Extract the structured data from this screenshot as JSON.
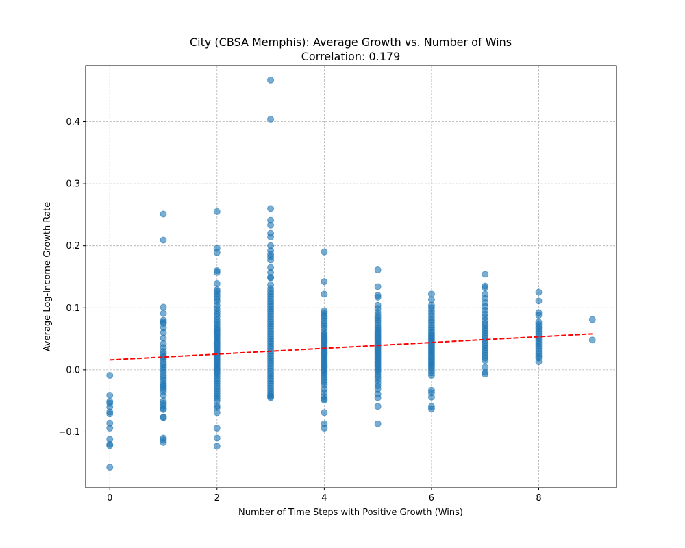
{
  "chart_data": {
    "type": "scatter",
    "title": "City (CBSA Memphis): Average Growth vs. Number of Wins",
    "subtitle": "Correlation: 0.179",
    "xlabel": "Number of Time Steps with Positive Growth (Wins)",
    "ylabel": "Average Log-Income Growth Rate",
    "xlim": [
      -0.45,
      9.45
    ],
    "ylim": [
      -0.19,
      0.49
    ],
    "xticks": [
      0,
      2,
      4,
      6,
      8
    ],
    "yticks": [
      -0.1,
      0.0,
      0.1,
      0.2,
      0.3,
      0.4
    ],
    "xtick_labels": [
      "0",
      "2",
      "4",
      "6",
      "8"
    ],
    "ytick_labels": [
      "−0.1",
      "0.0",
      "0.1",
      "0.2",
      "0.3",
      "0.4"
    ],
    "grid": true,
    "point_color": "#1f77b4",
    "trend_color": "#ff0000",
    "trendline": {
      "x": [
        0,
        9
      ],
      "y": [
        0.016,
        0.058
      ]
    },
    "series": [
      {
        "x": 0,
        "y": [
          -0.009,
          -0.041,
          -0.051,
          -0.054,
          -0.06,
          -0.068,
          -0.071,
          -0.086,
          -0.094,
          -0.112,
          -0.12,
          -0.122,
          -0.157
        ]
      },
      {
        "x": 1,
        "y": [
          0.251,
          0.209,
          0.101,
          0.091,
          0.08,
          0.077,
          0.075,
          0.068,
          0.06,
          0.051,
          0.042,
          0.036,
          0.03,
          0.026,
          0.022,
          0.02,
          0.017,
          0.012,
          0.008,
          0.004,
          0.0,
          -0.004,
          -0.009,
          -0.013,
          -0.017,
          -0.022,
          -0.025,
          -0.028,
          -0.031,
          -0.035,
          -0.041,
          -0.05,
          -0.054,
          -0.058,
          -0.062,
          -0.064,
          -0.076,
          -0.077,
          -0.11,
          -0.113,
          -0.117
        ]
      },
      {
        "x": 2,
        "y": [
          0.255,
          0.196,
          0.189,
          0.16,
          0.157,
          0.139,
          0.129,
          0.126,
          0.122,
          0.118,
          0.114,
          0.11,
          0.104,
          0.099,
          0.094,
          0.09,
          0.086,
          0.081,
          0.077,
          0.073,
          0.069,
          0.066,
          0.063,
          0.06,
          0.057,
          0.054,
          0.051,
          0.048,
          0.045,
          0.042,
          0.039,
          0.036,
          0.033,
          0.03,
          0.027,
          0.024,
          0.021,
          0.018,
          0.015,
          0.012,
          0.009,
          0.006,
          0.003,
          0.0,
          -0.003,
          -0.006,
          -0.01,
          -0.014,
          -0.018,
          -0.022,
          -0.026,
          -0.03,
          -0.034,
          -0.038,
          -0.042,
          -0.046,
          -0.05,
          -0.058,
          -0.061,
          -0.069,
          -0.094,
          -0.11,
          -0.123
        ]
      },
      {
        "x": 3,
        "y": [
          0.467,
          0.404,
          0.26,
          0.241,
          0.233,
          0.22,
          0.214,
          0.2,
          0.192,
          0.186,
          0.182,
          0.177,
          0.165,
          0.157,
          0.149,
          0.148,
          0.137,
          0.131,
          0.126,
          0.122,
          0.118,
          0.114,
          0.11,
          0.106,
          0.102,
          0.098,
          0.094,
          0.09,
          0.086,
          0.082,
          0.078,
          0.074,
          0.07,
          0.066,
          0.062,
          0.058,
          0.054,
          0.05,
          0.046,
          0.042,
          0.038,
          0.034,
          0.03,
          0.026,
          0.022,
          0.018,
          0.014,
          0.01,
          0.006,
          0.002,
          -0.002,
          -0.006,
          -0.01,
          -0.014,
          -0.018,
          -0.022,
          -0.026,
          -0.03,
          -0.034,
          -0.038,
          -0.041,
          -0.043,
          -0.045
        ]
      },
      {
        "x": 4,
        "y": [
          0.19,
          0.142,
          0.122,
          0.095,
          0.091,
          0.087,
          0.084,
          0.079,
          0.075,
          0.071,
          0.067,
          0.061,
          0.058,
          0.055,
          0.052,
          0.049,
          0.046,
          0.043,
          0.04,
          0.037,
          0.034,
          0.031,
          0.028,
          0.025,
          0.022,
          0.019,
          0.016,
          0.013,
          0.01,
          0.007,
          0.004,
          0.001,
          -0.002,
          -0.005,
          -0.008,
          -0.012,
          -0.016,
          -0.02,
          -0.024,
          -0.031,
          -0.037,
          -0.043,
          -0.047,
          -0.049,
          -0.069,
          -0.087,
          -0.094
        ]
      },
      {
        "x": 5,
        "y": [
          0.161,
          0.134,
          0.12,
          0.117,
          0.104,
          0.099,
          0.093,
          0.088,
          0.084,
          0.08,
          0.076,
          0.072,
          0.068,
          0.065,
          0.062,
          0.059,
          0.056,
          0.053,
          0.05,
          0.047,
          0.044,
          0.041,
          0.038,
          0.035,
          0.032,
          0.029,
          0.026,
          0.023,
          0.02,
          0.017,
          0.014,
          0.011,
          0.008,
          0.005,
          0.002,
          -0.001,
          -0.004,
          -0.008,
          -0.012,
          -0.016,
          -0.021,
          -0.026,
          -0.031,
          -0.039,
          -0.045,
          -0.059,
          -0.087
        ]
      },
      {
        "x": 6,
        "y": [
          0.122,
          0.113,
          0.104,
          0.1,
          0.095,
          0.09,
          0.085,
          0.08,
          0.076,
          0.072,
          0.068,
          0.064,
          0.06,
          0.057,
          0.054,
          0.051,
          0.048,
          0.045,
          0.042,
          0.039,
          0.036,
          0.033,
          0.03,
          0.027,
          0.024,
          0.021,
          0.018,
          0.015,
          0.012,
          0.009,
          0.006,
          0.003,
          -0.001,
          -0.005,
          -0.009,
          -0.033,
          -0.037,
          -0.044,
          -0.059,
          -0.063
        ]
      },
      {
        "x": 7,
        "y": [
          0.154,
          0.135,
          0.132,
          0.122,
          0.115,
          0.108,
          0.102,
          0.096,
          0.09,
          0.085,
          0.08,
          0.075,
          0.071,
          0.067,
          0.063,
          0.059,
          0.055,
          0.051,
          0.047,
          0.043,
          0.039,
          0.035,
          0.031,
          0.027,
          0.023,
          0.019,
          0.015,
          0.004,
          -0.004,
          -0.007
        ]
      },
      {
        "x": 8,
        "y": [
          0.125,
          0.111,
          0.092,
          0.088,
          0.077,
          0.073,
          0.069,
          0.066,
          0.062,
          0.058,
          0.054,
          0.05,
          0.046,
          0.042,
          0.038,
          0.034,
          0.03,
          0.026,
          0.022,
          0.019,
          0.013
        ]
      },
      {
        "x": 9,
        "y": [
          0.081,
          0.048
        ]
      }
    ]
  }
}
